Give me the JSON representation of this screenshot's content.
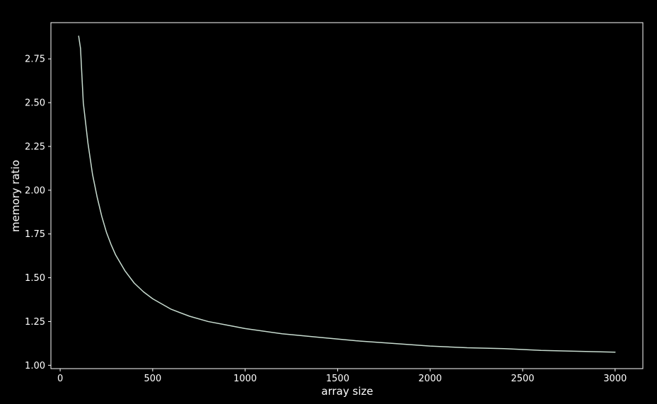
{
  "chart_data": {
    "type": "line",
    "title": "",
    "xlabel": "array size",
    "ylabel": "memory ratio",
    "xlim": [
      -50,
      3150
    ],
    "ylim": [
      0.981,
      2.957
    ],
    "xticks": [
      0,
      500,
      1000,
      1500,
      2000,
      2500,
      3000
    ],
    "xtick_labels": [
      "0",
      "500",
      "1000",
      "1500",
      "2000",
      "2500",
      "3000"
    ],
    "yticks": [
      1.0,
      1.25,
      1.5,
      1.75,
      2.0,
      2.25,
      2.5,
      2.75
    ],
    "ytick_labels": [
      "1.00",
      "1.25",
      "1.50",
      "1.75",
      "2.00",
      "2.25",
      "2.50",
      "2.75"
    ],
    "grid": false,
    "legend": false,
    "background_color": "#000000",
    "axis_color": "#ffffff",
    "series": [
      {
        "color": "#c8dcd0",
        "x": [
          100,
          110,
          125,
          150,
          175,
          200,
          225,
          250,
          275,
          300,
          350,
          400,
          450,
          500,
          600,
          700,
          800,
          900,
          1000,
          1200,
          1400,
          1600,
          1800,
          2000,
          2200,
          2400,
          2600,
          2800,
          3000
        ],
        "y": [
          2.88,
          2.81,
          2.5,
          2.27,
          2.09,
          1.96,
          1.85,
          1.76,
          1.69,
          1.63,
          1.54,
          1.47,
          1.42,
          1.38,
          1.32,
          1.28,
          1.25,
          1.23,
          1.21,
          1.18,
          1.16,
          1.14,
          1.125,
          1.11,
          1.1,
          1.095,
          1.085,
          1.08,
          1.075
        ]
      }
    ]
  }
}
